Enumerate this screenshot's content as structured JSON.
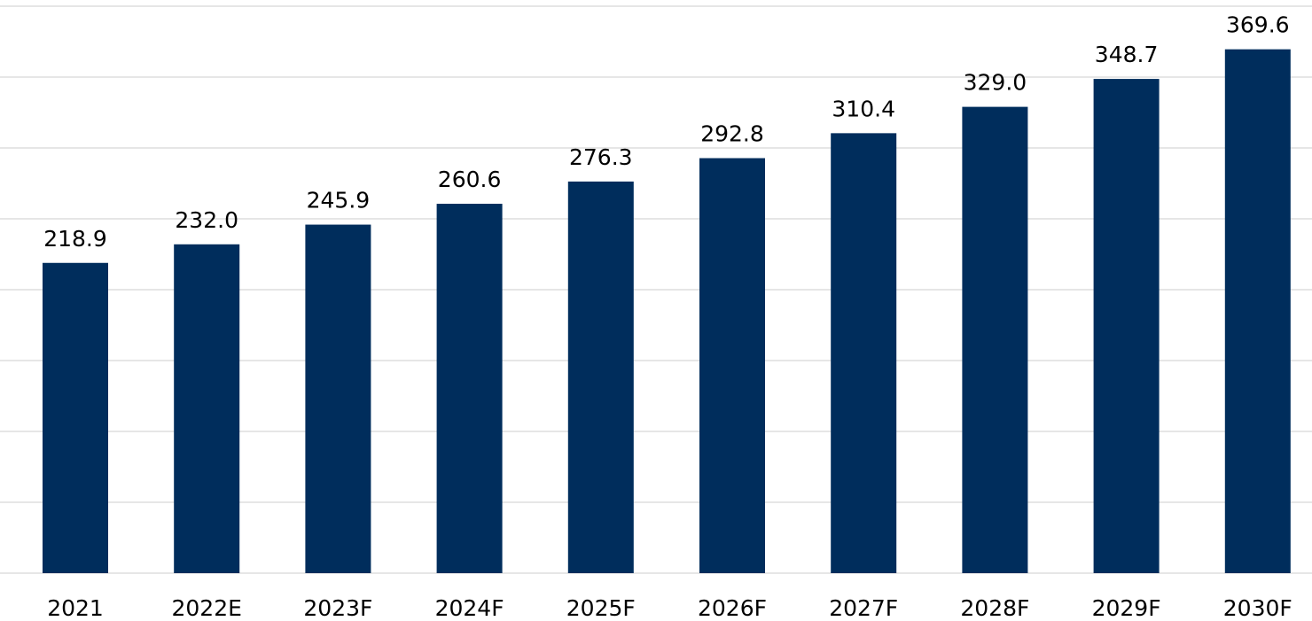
{
  "chart_data": {
    "type": "bar",
    "categories": [
      "2021",
      "2022E",
      "2023F",
      "2024F",
      "2025F",
      "2026F",
      "2027F",
      "2028F",
      "2029F",
      "2030F"
    ],
    "values": [
      218.9,
      232.0,
      245.9,
      260.6,
      276.3,
      292.8,
      310.4,
      329.0,
      348.7,
      369.6
    ],
    "value_labels": [
      "218.9",
      "232.0",
      "245.9",
      "260.6",
      "276.3",
      "292.8",
      "310.4",
      "329.0",
      "348.7",
      "369.6"
    ],
    "color": "#002d5c",
    "ylim": [
      0,
      400
    ],
    "yticks": [
      0,
      50,
      100,
      150,
      200,
      250,
      300,
      350,
      400
    ],
    "grid": true
  }
}
